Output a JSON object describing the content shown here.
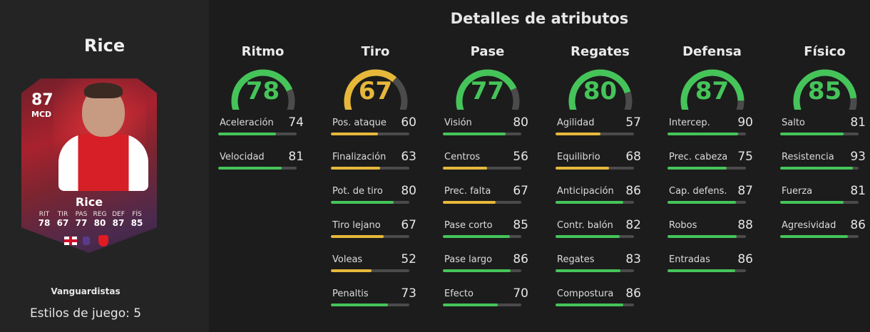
{
  "player": {
    "name": "Rice",
    "rating": "87",
    "position": "MCD",
    "card_name": "Rice",
    "card_stats": [
      {
        "label": "RIT",
        "value": "78"
      },
      {
        "label": "TIR",
        "value": "67"
      },
      {
        "label": "PAS",
        "value": "77"
      },
      {
        "label": "REG",
        "value": "80"
      },
      {
        "label": "DEF",
        "value": "87"
      },
      {
        "label": "FÍS",
        "value": "85"
      }
    ],
    "card_type": "Vanguardistas",
    "playstyles": "Estilos de juego: 5"
  },
  "colors": {
    "high": "#45c45a",
    "mid": "#e6b83a",
    "track": "#4b4b4b"
  },
  "heading": "Detalles de atributos",
  "categories": [
    {
      "title": "Ritmo",
      "value": 78,
      "stats": [
        {
          "name": "Aceleración",
          "value": 74
        },
        {
          "name": "Velocidad",
          "value": 81
        }
      ]
    },
    {
      "title": "Tiro",
      "value": 67,
      "stats": [
        {
          "name": "Pos. ataque",
          "value": 60
        },
        {
          "name": "Finalización",
          "value": 63
        },
        {
          "name": "Pot. de tiro",
          "value": 80
        },
        {
          "name": "Tiro lejano",
          "value": 67
        },
        {
          "name": "Voleas",
          "value": 52
        },
        {
          "name": "Penaltis",
          "value": 73
        }
      ]
    },
    {
      "title": "Pase",
      "value": 77,
      "stats": [
        {
          "name": "Visión",
          "value": 80
        },
        {
          "name": "Centros",
          "value": 56
        },
        {
          "name": "Prec. falta",
          "value": 67
        },
        {
          "name": "Pase corto",
          "value": 85
        },
        {
          "name": "Pase largo",
          "value": 86
        },
        {
          "name": "Efecto",
          "value": 70
        }
      ]
    },
    {
      "title": "Regates",
      "value": 80,
      "stats": [
        {
          "name": "Agilidad",
          "value": 57
        },
        {
          "name": "Equilibrio",
          "value": 68
        },
        {
          "name": "Anticipación",
          "value": 86
        },
        {
          "name": "Contr. balón",
          "value": 82
        },
        {
          "name": "Regates",
          "value": 83
        },
        {
          "name": "Compostura",
          "value": 86
        }
      ]
    },
    {
      "title": "Defensa",
      "value": 87,
      "stats": [
        {
          "name": "Intercep.",
          "value": 90
        },
        {
          "name": "Prec. cabeza",
          "value": 75
        },
        {
          "name": "Cap. defens.",
          "value": 87
        },
        {
          "name": "Robos",
          "value": 88
        },
        {
          "name": "Entradas",
          "value": 86
        }
      ]
    },
    {
      "title": "Físico",
      "value": 85,
      "stats": [
        {
          "name": "Salto",
          "value": 81
        },
        {
          "name": "Resistencia",
          "value": 93
        },
        {
          "name": "Fuerza",
          "value": 81
        },
        {
          "name": "Agresividad",
          "value": 86
        }
      ]
    }
  ]
}
